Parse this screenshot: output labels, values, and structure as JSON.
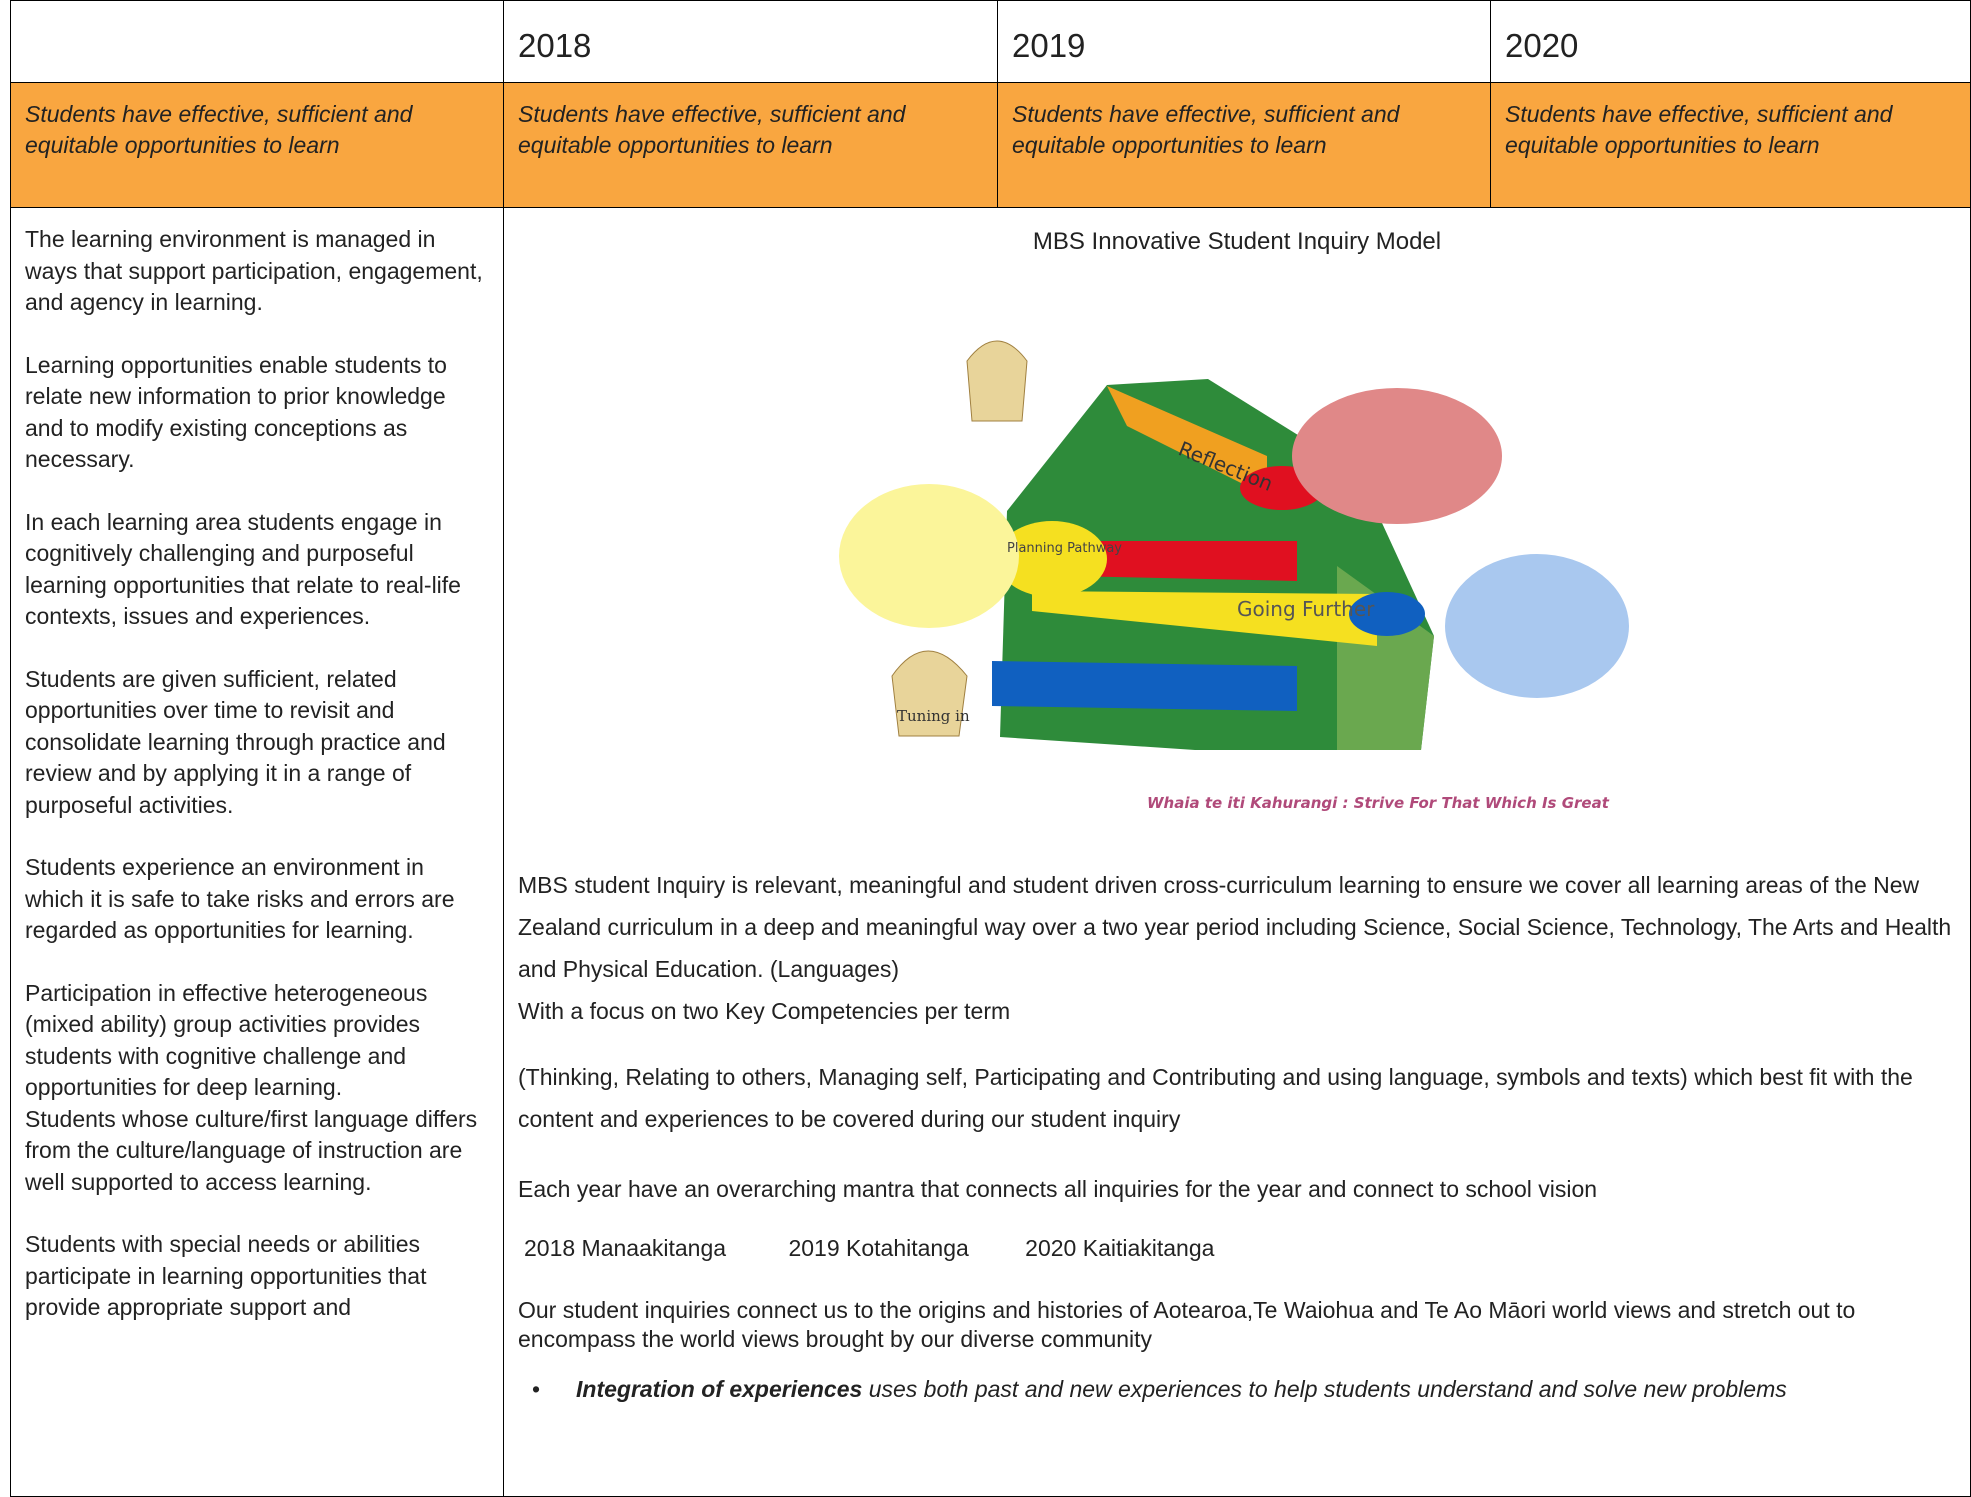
{
  "header": {
    "years": [
      "2018",
      "2019",
      "2020"
    ]
  },
  "outcome_row": [
    "Students have effective, sufficient and equitable opportunities to learn",
    "Students have effective, sufficient and equitable opportunities to learn",
    "Students have effective, sufficient and equitable opportunities to learn",
    "Students have effective, sufficient and equitable opportunities to learn"
  ],
  "left_column": [
    "The learning environment is managed in ways that support participation, engagement, and agency in learning.",
    "Learning opportunities enable students to relate new information to prior knowledge and to modify existing conceptions as necessary.",
    "In each learning area students engage in cognitively challenging and purposeful learning opportunities that relate to real-life contexts, issues and experiences.",
    "Students are given sufficient, related opportunities over time to revisit and consolidate learning through practice and review and by applying it in a range of purposeful activities.",
    "Students experience an environment in which it is safe to take risks and errors are regarded as opportunities for learning.",
    "Participation in effective heterogeneous (mixed ability) group activities provides students with cognitive challenge and opportunities for deep learning.",
    "Students whose culture/first language differs from the culture/language of instruction are well supported to access learning.",
    "Students with special needs or abilities participate in learning opportunities that provide appropriate support and"
  ],
  "model": {
    "title": "MBS Innovative Student Inquiry Model",
    "diagram": {
      "reflection": "Reflection",
      "planning": "Planning Pathway",
      "going_further": "Going Further",
      "tuning_in": "Tuning in",
      "motto": "Whaia te iti Kahurangi : Strive For That Which Is Great"
    },
    "paragraphs": [
      "MBS student Inquiry is relevant, meaningful and student driven cross-curriculum learning to ensure we cover all learning areas of the New Zealand curriculum in a deep and meaningful way over a two year period including Science, Social Science, Technology, The Arts and Health and Physical Education. (Languages)",
      "With a focus on two Key Competencies  per term",
      "(Thinking, Relating to others, Managing self, Participating and Contributing and using language, symbols and texts) which best fit with the content and experiences to be covered during our student inquiry",
      "Each year have  an overarching mantra that connects all inquiries for the year and connect to school vision"
    ],
    "mantras": [
      "2018  Manaakitanga",
      "2019  Kotahitanga",
      "2020  Kaitiakitanga"
    ],
    "community": "Our student inquiries connect us to the origins and histories of Aotearoa,Te Waiohua and Te Ao Māori world views and stretch out to encompass the world views brought by our diverse community",
    "bullet": {
      "bold": "Integration of experiences",
      "text": " uses both past and new experiences to help students understand and solve new problems"
    }
  }
}
